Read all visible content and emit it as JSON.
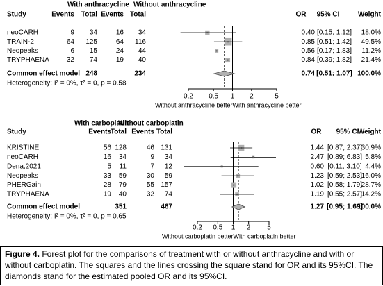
{
  "chart_data": [
    {
      "type": "forest",
      "group_labels": [
        "With anthracycline",
        "Without anthracycline"
      ],
      "columns": [
        "Study",
        "Events",
        "Total",
        "Events",
        "Total",
        "OR",
        "95% CI",
        "Weight"
      ],
      "categories": [
        "neoCARH",
        "TRAIN-2",
        "Neopeaks",
        "TRYPHAENA"
      ],
      "events_1": [
        9,
        64,
        6,
        32
      ],
      "total_1": [
        34,
        125,
        15,
        74
      ],
      "events_2": [
        16,
        64,
        24,
        19
      ],
      "total_2": [
        34,
        116,
        44,
        40
      ],
      "values": [
        0.4,
        0.85,
        0.56,
        0.84
      ],
      "value_labels": [
        "0.40",
        "0.85",
        "0.56",
        "0.84"
      ],
      "ci_low": [
        0.15,
        0.51,
        0.17,
        0.39
      ],
      "ci_high": [
        1.12,
        1.42,
        1.83,
        1.82
      ],
      "ci_labels": [
        "[0.15; 1.12]",
        "[0.51; 1.42]",
        "[0.17; 1.83]",
        "[0.39; 1.82]"
      ],
      "weights": [
        18.0,
        49.5,
        11.2,
        21.4
      ],
      "weight_labels": [
        "18.0%",
        "49.5%",
        "11.2%",
        "21.4%"
      ],
      "pooled": {
        "label": "Common effect model",
        "total_1": 248,
        "total_2": 234,
        "value": 0.74,
        "value_label": "0.74",
        "ci_low": 0.51,
        "ci_high": 1.07,
        "ci_label": "[0.51; 1.07]",
        "weight": 100.0,
        "weight_label": "100.0%"
      },
      "heterogeneity": "Heterogeneity: I² = 0%, τ² = 0, p = 0.58",
      "log_scale": true,
      "reference_line": 1,
      "xlim": [
        0.2,
        5
      ],
      "xticks": [
        0.2,
        0.5,
        1,
        2,
        5
      ],
      "xlabel_left": "Without anthracycline better",
      "xlabel_right": "With anthracycline better",
      "color": "#b0b0b0"
    },
    {
      "type": "forest",
      "group_labels": [
        "With carboplatin",
        "Without carboplatin"
      ],
      "columns": [
        "Study",
        "Events",
        "Total",
        "Events",
        "Total",
        "OR",
        "95% CI",
        "Weight"
      ],
      "categories": [
        "KRISTINE",
        "neoCARH",
        "Dena,2021",
        "Neopeaks",
        "PHERGain",
        "TRYPHAENA"
      ],
      "events_1": [
        56,
        16,
        5,
        33,
        28,
        19
      ],
      "total_1": [
        128,
        34,
        11,
        59,
        79,
        40
      ],
      "events_2": [
        46,
        9,
        7,
        30,
        55,
        32
      ],
      "total_2": [
        131,
        34,
        12,
        59,
        157,
        74
      ],
      "values": [
        1.44,
        2.47,
        0.6,
        1.23,
        1.02,
        1.19
      ],
      "value_labels": [
        "1.44",
        "2.47",
        "0.60",
        "1.23",
        "1.02",
        "1.19"
      ],
      "ci_low": [
        0.87,
        0.89,
        0.11,
        0.59,
        0.58,
        0.55
      ],
      "ci_high": [
        2.37,
        6.83,
        3.1,
        2.53,
        1.79,
        2.57
      ],
      "ci_labels": [
        "[0.87; 2.37]",
        "[0.89; 6.83]",
        "[0.11; 3.10]",
        "[0.59; 2.53]",
        "[0.58; 1.79]",
        "[0.55; 2.57]"
      ],
      "weights": [
        30.9,
        5.8,
        4.4,
        16.0,
        28.7,
        14.2
      ],
      "weight_labels": [
        "30.9%",
        "5.8%",
        "4.4%",
        "16.0%",
        "28.7%",
        "14.2%"
      ],
      "pooled": {
        "label": "Common effect model",
        "total_1": 351,
        "total_2": 467,
        "value": 1.27,
        "value_label": "1.27",
        "ci_low": 0.95,
        "ci_high": 1.69,
        "ci_label": "[0.95; 1.69]",
        "weight": 100.0,
        "weight_label": "100.0%"
      },
      "heterogeneity": "Heterogeneity: I² = 0%, τ² = 0, p = 0.65",
      "log_scale": true,
      "reference_line": 1,
      "xlim": [
        0.2,
        5
      ],
      "xticks": [
        0.2,
        0.5,
        1,
        2,
        5
      ],
      "xlabel_left": "Without carboplatin better",
      "xlabel_right": "With carboplatin better",
      "color": "#b0b0b0"
    }
  ],
  "caption": {
    "label": "Figure 4.",
    "text": " Forest plot for the comparisons of treatment with or without anthracycline and with or without carboplatin. The squares and the lines crossing the square stand for OR and its 95%CI. The diamonds stand for the estimated pooled OR and its 95%CI."
  }
}
